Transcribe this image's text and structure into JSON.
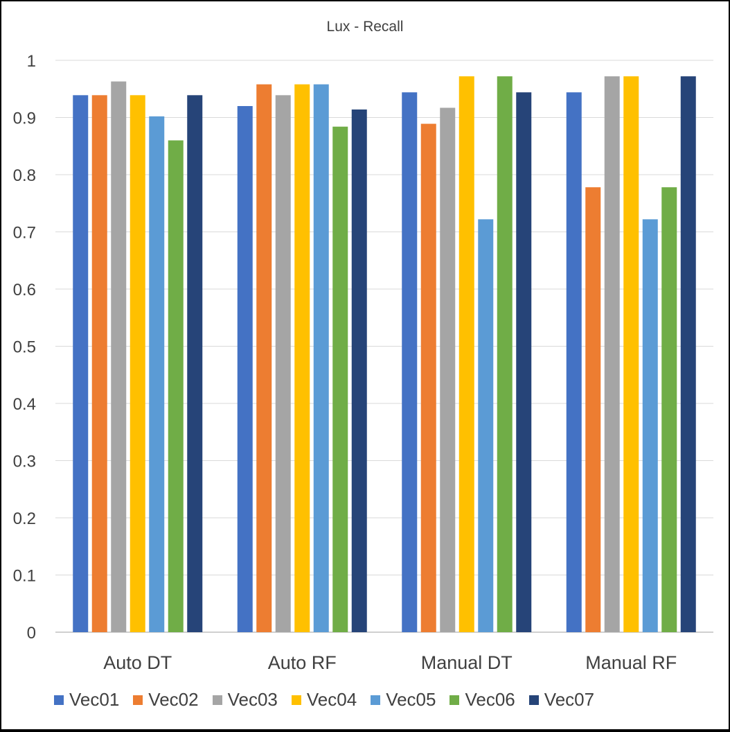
{
  "chart_data": {
    "type": "bar",
    "title": "Lux - Recall",
    "xlabel": "",
    "ylabel": "",
    "categories": [
      "Auto DT",
      "Auto RF",
      "Manual DT",
      "Manual RF"
    ],
    "ylim": [
      0,
      1
    ],
    "yticks": [
      "0",
      "0.1",
      "0.2",
      "0.3",
      "0.4",
      "0.5",
      "0.6",
      "0.7",
      "0.8",
      "0.9",
      "1"
    ],
    "grid": true,
    "legend_position": "bottom",
    "series": [
      {
        "name": "Vec01",
        "color": "#4472C4",
        "values": [
          0.939,
          0.92,
          0.944,
          0.944
        ]
      },
      {
        "name": "Vec02",
        "color": "#ED7D31",
        "values": [
          0.939,
          0.958,
          0.889,
          0.778
        ]
      },
      {
        "name": "Vec03",
        "color": "#A5A5A5",
        "values": [
          0.963,
          0.939,
          0.917,
          0.972
        ]
      },
      {
        "name": "Vec04",
        "color": "#FFC000",
        "values": [
          0.939,
          0.958,
          0.972,
          0.972
        ]
      },
      {
        "name": "Vec05",
        "color": "#5B9BD5",
        "values": [
          0.902,
          0.958,
          0.722,
          0.722
        ]
      },
      {
        "name": "Vec06",
        "color": "#70AD47",
        "values": [
          0.86,
          0.884,
          0.972,
          0.778
        ]
      },
      {
        "name": "Vec07",
        "color": "#264478",
        "values": [
          0.939,
          0.914,
          0.944,
          0.972
        ]
      }
    ]
  }
}
